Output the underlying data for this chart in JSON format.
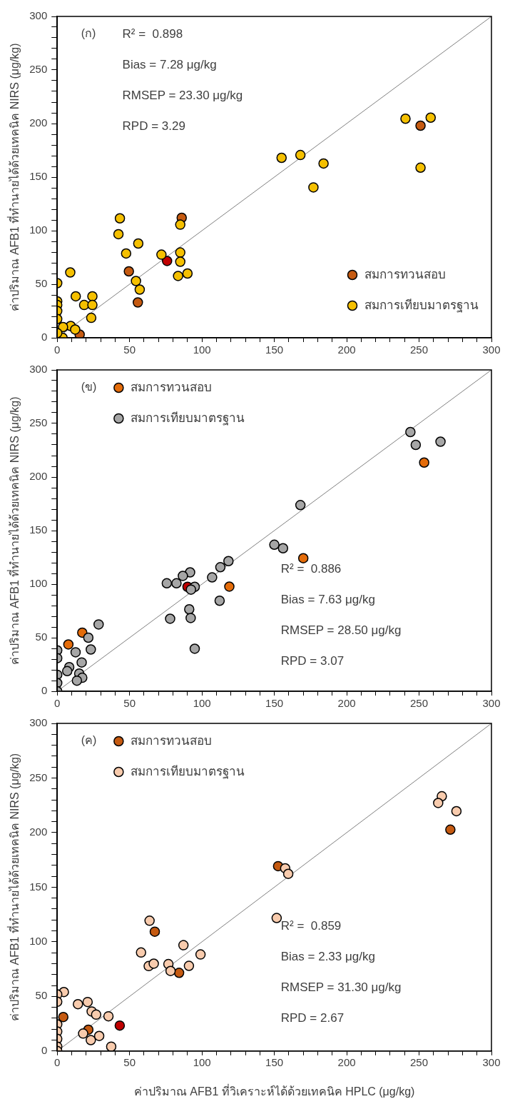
{
  "chart_data": [
    {
      "type": "scatter",
      "ylabel": "ค่าปริมาณ AFB1 ที่ทำนายได้ด้วยเทคนิค NIRS (μg/kg)",
      "annotations": [
        "(ก)",
        "R² =  0.898",
        "Bias = 7.28 μg/kg",
        "RMSEP = 23.30 μg/kg",
        "RPD = 3.29"
      ],
      "legend": "bottom right",
      "marker": "circle",
      "xlim": [
        0,
        300
      ],
      "ylim": [
        0,
        300
      ],
      "xticks": [
        0,
        {
          "value": 10,
          "label": null
        },
        {
          "value": 20,
          "label": null
        },
        {
          "value": 30,
          "label": null
        },
        {
          "value": 40,
          "label": null
        },
        50,
        {
          "value": 60,
          "label": null
        },
        {
          "value": 70,
          "label": null
        },
        {
          "value": 80,
          "label": null
        },
        {
          "value": 90,
          "label": null
        },
        100,
        {
          "value": 110,
          "label": null
        },
        {
          "value": 120,
          "label": null
        },
        {
          "value": 130,
          "label": null
        },
        {
          "value": 140,
          "label": null
        },
        150,
        {
          "value": 160,
          "label": null
        },
        {
          "value": 170,
          "label": null
        },
        {
          "value": 180,
          "label": null
        },
        {
          "value": 190,
          "label": null
        },
        200,
        {
          "value": 210,
          "label": null
        },
        {
          "value": 220,
          "label": null
        },
        {
          "value": 230,
          "label": null
        },
        {
          "value": 240,
          "label": null
        },
        250,
        {
          "value": 260,
          "label": null
        },
        {
          "value": 270,
          "label": null
        },
        {
          "value": 280,
          "label": null
        },
        {
          "value": 290,
          "label": null
        },
        300
      ],
      "yticks": [
        0,
        {
          "value": 10,
          "label": null
        },
        {
          "value": 20,
          "label": null
        },
        {
          "value": 30,
          "label": null
        },
        {
          "value": 40,
          "label": null
        },
        50,
        {
          "value": 60,
          "label": null
        },
        {
          "value": 70,
          "label": null
        },
        {
          "value": 80,
          "label": null
        },
        {
          "value": 90,
          "label": null
        },
        100,
        {
          "value": 110,
          "label": null
        },
        {
          "value": 120,
          "label": null
        },
        {
          "value": 130,
          "label": null
        },
        {
          "value": 140,
          "label": null
        },
        150,
        {
          "value": 160,
          "label": null
        },
        {
          "value": 170,
          "label": null
        },
        {
          "value": 180,
          "label": null
        },
        {
          "value": 190,
          "label": null
        },
        200,
        {
          "value": 210,
          "label": null
        },
        {
          "value": 220,
          "label": null
        },
        {
          "value": 230,
          "label": null
        },
        {
          "value": 240,
          "label": null
        },
        250,
        {
          "value": 260,
          "label": null
        },
        {
          "value": 270,
          "label": null
        },
        {
          "value": 280,
          "label": null
        },
        {
          "value": 290,
          "label": null
        },
        300
      ],
      "series": [
        {
          "type": "line",
          "marker": "none",
          "color": "#808080",
          "x": [
            0,
            300
          ],
          "values": [
            0,
            300
          ]
        },
        {
          "name": "สมการเทียบมาตรฐาน",
          "color": "#f5c000",
          "x": [
            240.6,
            258,
            251,
            155,
            168,
            184,
            177,
            43.3,
            42.3,
            85,
            56,
            47.6,
            72,
            85,
            85,
            83.5,
            90,
            54.4,
            57,
            9,
            0,
            12.8,
            24.3,
            18.6,
            24.3,
            23.5,
            0,
            0,
            0,
            0,
            9.3,
            12.4,
            4,
            null,
            3.7,
            0
          ],
          "values": [
            204.5,
            205.5,
            158.8,
            168,
            170.6,
            162.7,
            140.4,
            111.5,
            96.7,
            105.6,
            88,
            78.7,
            77.6,
            79.6,
            71,
            57.7,
            60,
            53,
            45,
            61,
            51,
            38.7,
            38.7,
            30.6,
            30.6,
            18.6,
            34,
            30.6,
            25,
            17.5,
            11,
            7.7,
            10,
            null,
            0,
            4.4
          ]
        },
        {
          "name": "สมการทวนสอบ",
          "color": "#c55a11",
          "x": [
            251,
            86,
            49.5,
            55.7,
            15.5
          ],
          "values": [
            198,
            112,
            62,
            33,
            3
          ]
        },
        {
          "color": "#c00000",
          "x": [
            75.9
          ],
          "values": [
            71.7
          ]
        }
      ]
    },
    {
      "type": "scatter",
      "ylabel": "ค่าปริมาณ AFB1 ที่ทำนายได้ด้วยเทคนิค NIRS (μg/kg)",
      "annotations": [
        "(ข)",
        "R² =  0.886",
        "Bias = 7.63 μg/kg",
        "RMSEP = 28.50 μg/kg",
        "RPD = 3.07"
      ],
      "legend": "top left",
      "marker": "circle",
      "xlim": [
        0,
        300
      ],
      "ylim": [
        0,
        300
      ],
      "xticks": [
        0,
        {
          "value": 10,
          "label": null
        },
        {
          "value": 20,
          "label": null
        },
        {
          "value": 30,
          "label": null
        },
        {
          "value": 40,
          "label": null
        },
        50,
        {
          "value": 60,
          "label": null
        },
        {
          "value": 70,
          "label": null
        },
        {
          "value": 80,
          "label": null
        },
        {
          "value": 90,
          "label": null
        },
        100,
        {
          "value": 110,
          "label": null
        },
        {
          "value": 120,
          "label": null
        },
        {
          "value": 130,
          "label": null
        },
        {
          "value": 140,
          "label": null
        },
        150,
        {
          "value": 160,
          "label": null
        },
        {
          "value": 170,
          "label": null
        },
        {
          "value": 180,
          "label": null
        },
        {
          "value": 190,
          "label": null
        },
        200,
        {
          "value": 210,
          "label": null
        },
        {
          "value": 220,
          "label": null
        },
        {
          "value": 230,
          "label": null
        },
        {
          "value": 240,
          "label": null
        },
        250,
        {
          "value": 260,
          "label": null
        },
        {
          "value": 270,
          "label": null
        },
        {
          "value": 280,
          "label": null
        },
        {
          "value": 290,
          "label": null
        },
        300
      ],
      "yticks": [
        0,
        {
          "value": 10,
          "label": null
        },
        {
          "value": 20,
          "label": null
        },
        {
          "value": 30,
          "label": null
        },
        {
          "value": 40,
          "label": null
        },
        50,
        {
          "value": 60,
          "label": null
        },
        {
          "value": 70,
          "label": null
        },
        {
          "value": 80,
          "label": null
        },
        {
          "value": 90,
          "label": null
        },
        100,
        {
          "value": 110,
          "label": null
        },
        {
          "value": 120,
          "label": null
        },
        {
          "value": 130,
          "label": null
        },
        {
          "value": 140,
          "label": null
        },
        150,
        {
          "value": 160,
          "label": null
        },
        {
          "value": 170,
          "label": null
        },
        {
          "value": 180,
          "label": null
        },
        {
          "value": 190,
          "label": null
        },
        200,
        {
          "value": 210,
          "label": null
        },
        {
          "value": 220,
          "label": null
        },
        {
          "value": 230,
          "label": null
        },
        {
          "value": 240,
          "label": null
        },
        250,
        {
          "value": 260,
          "label": null
        },
        {
          "value": 270,
          "label": null
        },
        {
          "value": 280,
          "label": null
        },
        {
          "value": 290,
          "label": null
        },
        300
      ],
      "series": [
        {
          "type": "line",
          "marker": "none",
          "color": "#808080",
          "x": [
            0,
            300
          ],
          "values": [
            0,
            300
          ]
        },
        {
          "name": "สมการเทียบมาตรฐาน",
          "color": "#a6a6a6",
          "x": [
            244,
            247.7,
            264.8,
            168,
            150,
            156,
            118.3,
            112.7,
            107,
            91.8,
            86.8,
            75.7,
            82.4,
            95,
            92.4,
            112.2,
            91.2,
            92.2,
            78,
            95,
            28.6,
            21.5,
            23.2,
            12.7,
            0,
            0,
            16.9,
            8.3,
            6.9,
            15.2,
            17.3,
            13.6,
            0,
            0,
            0
          ],
          "values": [
            242,
            230,
            233,
            173.8,
            136.8,
            133.5,
            121.5,
            115.8,
            106.3,
            111,
            107.7,
            100.8,
            100.8,
            97.5,
            94.9,
            84.5,
            76.5,
            68.4,
            67.7,
            39.7,
            62.4,
            50,
            39,
            36.4,
            38.2,
            30.9,
            26.9,
            22.5,
            18.8,
            16.5,
            12.6,
            9.9,
            15.4,
            7.7,
            0
          ]
        },
        {
          "name": "สมการทวนสอบ",
          "color": "#e46c0a",
          "x": [
            253.5,
            170,
            118.9,
            17.3,
            7.7
          ],
          "values": [
            213.5,
            124.2,
            97.7,
            54.7,
            43.7
          ]
        },
        {
          "color": "#c00000",
          "x": [
            90
          ],
          "values": [
            97.5
          ]
        }
      ]
    },
    {
      "type": "scatter",
      "ylabel": "ค่าปริมาณ AFB1 ที่ทำนายได้ด้วยเทคนิค NIRS (μg/kg)",
      "xlabel": "ค่าปริมาณ AFB1 ที่วิเคราะห์ได้ด้วยเทคนิค HPLC (μg/kg)",
      "annotations": [
        "(ค)",
        "R² =  0.859",
        "Bias = 2.33 μg/kg",
        "RMSEP = 31.30 μg/kg",
        "RPD = 2.67"
      ],
      "legend": "top left",
      "marker": "circle",
      "xlim": [
        0,
        300
      ],
      "ylim": [
        0,
        300
      ],
      "xticks": [
        0,
        {
          "value": 10,
          "label": null
        },
        {
          "value": 20,
          "label": null
        },
        {
          "value": 30,
          "label": null
        },
        {
          "value": 40,
          "label": null
        },
        50,
        {
          "value": 60,
          "label": null
        },
        {
          "value": 70,
          "label": null
        },
        {
          "value": 80,
          "label": null
        },
        {
          "value": 90,
          "label": null
        },
        100,
        {
          "value": 110,
          "label": null
        },
        {
          "value": 120,
          "label": null
        },
        {
          "value": 130,
          "label": null
        },
        {
          "value": 140,
          "label": null
        },
        150,
        {
          "value": 160,
          "label": null
        },
        {
          "value": 170,
          "label": null
        },
        {
          "value": 180,
          "label": null
        },
        {
          "value": 190,
          "label": null
        },
        200,
        {
          "value": 210,
          "label": null
        },
        {
          "value": 220,
          "label": null
        },
        {
          "value": 230,
          "label": null
        },
        {
          "value": 240,
          "label": null
        },
        250,
        {
          "value": 260,
          "label": null
        },
        {
          "value": 270,
          "label": null
        },
        {
          "value": 280,
          "label": null
        },
        {
          "value": 290,
          "label": null
        },
        300
      ],
      "yticks": [
        0,
        {
          "value": 10,
          "label": null
        },
        {
          "value": 20,
          "label": null
        },
        {
          "value": 30,
          "label": null
        },
        {
          "value": 40,
          "label": null
        },
        50,
        {
          "value": 60,
          "label": null
        },
        {
          "value": 70,
          "label": null
        },
        {
          "value": 80,
          "label": null
        },
        {
          "value": 90,
          "label": null
        },
        100,
        {
          "value": 110,
          "label": null
        },
        {
          "value": 120,
          "label": null
        },
        {
          "value": 130,
          "label": null
        },
        {
          "value": 140,
          "label": null
        },
        150,
        {
          "value": 160,
          "label": null
        },
        {
          "value": 170,
          "label": null
        },
        {
          "value": 180,
          "label": null
        },
        {
          "value": 190,
          "label": null
        },
        200,
        {
          "value": 210,
          "label": null
        },
        {
          "value": 220,
          "label": null
        },
        {
          "value": 230,
          "label": null
        },
        {
          "value": 240,
          "label": null
        },
        250,
        {
          "value": 260,
          "label": null
        },
        {
          "value": 270,
          "label": null
        },
        {
          "value": 280,
          "label": null
        },
        {
          "value": 290,
          "label": null
        },
        300
      ],
      "series": [
        {
          "type": "line",
          "marker": "none",
          "color": "#808080",
          "x": [
            0,
            300
          ],
          "values": [
            0,
            300
          ]
        },
        {
          "name": "สมการเทียบมาตรฐาน",
          "color": "#f8cbad",
          "x": [
            265.7,
            263.2,
            275.8,
            157.5,
            159.6,
            151.6,
            63.8,
            87.2,
            99,
            57.9,
            63.2,
            66.7,
            76.8,
            78.3,
            91,
            4.6,
            0,
            0,
            14.3,
            21,
            23.8,
            26.9,
            35.4,
            17.9,
            23.2,
            29,
            37.3,
            0,
            0,
            0,
            0,
            0
          ],
          "values": [
            233.3,
            227.1,
            219.6,
            167.3,
            162.2,
            121.8,
            119.3,
            96.9,
            88.4,
            90.2,
            77.8,
            80,
            79.6,
            73.3,
            78,
            54,
            51.8,
            45.1,
            42.9,
            44.9,
            36.2,
            33.3,
            31.8,
            16,
            10,
            13.8,
            4,
            24.4,
            17.8,
            11.1,
            4,
            0
          ]
        },
        {
          "name": "สมการทวนสอบ",
          "color": "#c55a11",
          "x": [
            271.6,
            152.6,
            67.4,
            84.2,
            4.2,
            21.5
          ],
          "values": [
            202.7,
            169.3,
            109.3,
            71.6,
            31.1,
            19.5
          ]
        },
        {
          "color": "#c00000",
          "x": [
            43.2
          ],
          "values": [
            23.3
          ]
        }
      ]
    }
  ]
}
